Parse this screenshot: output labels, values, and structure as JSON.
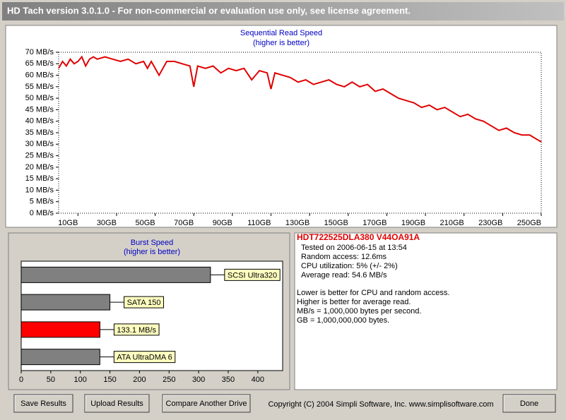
{
  "window": {
    "title": "HD Tach version 3.0.1.0  - For non-commercial or evaluation use only, see license agreement."
  },
  "chart_data": [
    {
      "type": "line",
      "title": "Sequential Read Speed",
      "subtitle": "(higher is better)",
      "x": [
        0,
        2,
        4,
        6,
        8,
        10,
        12,
        14,
        16,
        18,
        20,
        24,
        28,
        32,
        36,
        40,
        44,
        46,
        48,
        52,
        56,
        60,
        64,
        68,
        70,
        72,
        76,
        80,
        84,
        88,
        92,
        96,
        100,
        104,
        108,
        110,
        112,
        116,
        120,
        124,
        128,
        132,
        136,
        140,
        144,
        148,
        152,
        156,
        160,
        164,
        168,
        172,
        176,
        180,
        184,
        188,
        192,
        196,
        200,
        204,
        208,
        212,
        216,
        220,
        224,
        228,
        232,
        236,
        240,
        244,
        248,
        250
      ],
      "values": [
        63,
        66,
        64,
        67,
        65,
        66,
        68,
        64,
        67,
        68,
        67,
        68,
        67,
        66,
        67,
        65,
        66,
        63,
        66,
        60,
        66,
        66,
        65,
        64,
        55,
        64,
        63,
        64,
        61,
        63,
        62,
        63,
        58,
        62,
        61,
        54,
        61,
        60,
        59,
        57,
        58,
        56,
        57,
        58,
        56,
        55,
        57,
        55,
        56,
        53,
        54,
        52,
        50,
        49,
        48,
        46,
        47,
        45,
        46,
        44,
        42,
        43,
        41,
        40,
        38,
        36,
        37,
        35,
        34,
        34,
        32,
        31
      ],
      "color": "#e00000",
      "xlim": [
        0,
        250
      ],
      "xticks": [
        {
          "value": 10,
          "label": "10GB"
        },
        {
          "value": 30,
          "label": "30GB"
        },
        {
          "value": 50,
          "label": "50GB"
        },
        {
          "value": 70,
          "label": "70GB"
        },
        {
          "value": 90,
          "label": "90GB"
        },
        {
          "value": 110,
          "label": "110GB"
        },
        {
          "value": 130,
          "label": "130GB"
        },
        {
          "value": 150,
          "label": "150GB"
        },
        {
          "value": 170,
          "label": "170GB"
        },
        {
          "value": 190,
          "label": "190GB"
        },
        {
          "value": 210,
          "label": "210GB"
        },
        {
          "value": 230,
          "label": "230GB"
        },
        {
          "value": 250,
          "label": "250GB"
        }
      ],
      "ylim": [
        0,
        70
      ],
      "yticks": [
        {
          "value": 0,
          "label": "0 MB/s"
        },
        {
          "value": 5,
          "label": "5 MB/s"
        },
        {
          "value": 10,
          "label": "10 MB/s"
        },
        {
          "value": 15,
          "label": "15 MB/s"
        },
        {
          "value": 20,
          "label": "20 MB/s"
        },
        {
          "value": 25,
          "label": "25 MB/s"
        },
        {
          "value": 30,
          "label": "30 MB/s"
        },
        {
          "value": 35,
          "label": "35 MB/s"
        },
        {
          "value": 40,
          "label": "40 MB/s"
        },
        {
          "value": 45,
          "label": "45 MB/s"
        },
        {
          "value": 50,
          "label": "50 MB/s"
        },
        {
          "value": 55,
          "label": "55 MB/s"
        },
        {
          "value": 60,
          "label": "60 MB/s"
        },
        {
          "value": 65,
          "label": "65 MB/s"
        },
        {
          "value": 70,
          "label": "70 MB/s"
        }
      ]
    },
    {
      "type": "hbar",
      "title": "Burst Speed",
      "subtitle": "(higher is better)",
      "categories": [
        "SCSI Ultra320",
        "SATA 150",
        null,
        "ATA UltraDMA 6"
      ],
      "values": [
        320,
        150,
        133.1,
        133
      ],
      "value_labels": [
        null,
        null,
        "133.1 MB/s",
        null
      ],
      "colors": [
        "#808080",
        "#808080",
        "#ff0000",
        "#808080"
      ],
      "xlim": [
        0,
        442
      ],
      "xticks": [
        0,
        50,
        100,
        150,
        200,
        250,
        300,
        350,
        400
      ]
    }
  ],
  "info": {
    "drive": "HDT722525DLA380 V44OA91A",
    "stats": [
      "Tested on 2006-06-15 at 13:54",
      "Random access: 12.6ms",
      "CPU utilization: 5% (+/- 2%)",
      "Average read: 54.6 MB/s"
    ],
    "notes": [
      "Lower is better for CPU and random access.",
      "Higher is better for average read.",
      "MB/s = 1,000,000 bytes per second.",
      "GB = 1,000,000,000 bytes."
    ]
  },
  "buttons": [
    "Save Results",
    "Upload Results",
    "Compare Another Drive",
    "Done"
  ],
  "copyright": "Copyright (C) 2004 Simpli Software, Inc. www.simplisoftware.com"
}
